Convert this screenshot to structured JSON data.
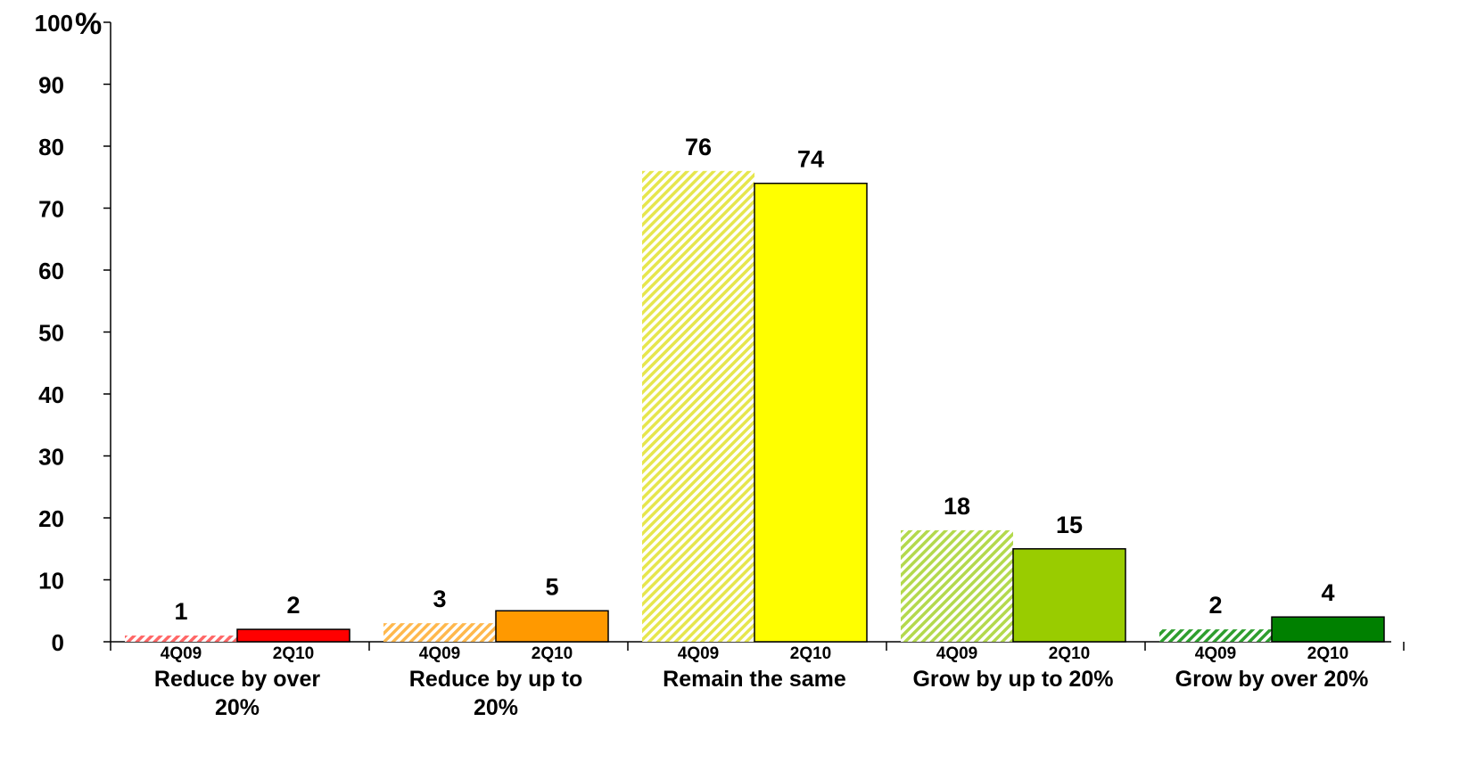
{
  "chart_data": {
    "type": "bar",
    "ylim": [
      0,
      100
    ],
    "yticks": [
      0,
      10,
      20,
      30,
      40,
      50,
      60,
      70,
      80,
      90,
      100
    ],
    "ylabel": "%",
    "grid": false,
    "legend": "none",
    "periods": [
      "4Q09",
      "2Q10"
    ],
    "categories": [
      "Reduce by over 20%",
      "Reduce by up to 20%",
      "Remain the same",
      "Grow by up to 20%",
      "Grow by over 20%"
    ],
    "series": [
      {
        "period": "4Q09",
        "values": [
          1,
          3,
          76,
          18,
          2
        ],
        "style": "hatched"
      },
      {
        "period": "2Q10",
        "values": [
          2,
          5,
          74,
          15,
          4
        ],
        "style": "solid"
      }
    ],
    "value_labels": {
      "4Q09": [
        "1",
        "3",
        "76",
        "18",
        "2"
      ],
      "2Q10": [
        "2",
        "5",
        "74",
        "15",
        "4"
      ]
    },
    "bar_colors": [
      "#ff0000",
      "#ff9900",
      "#ffff00",
      "#99cc00",
      "#008000"
    ],
    "hatch_colors": [
      "#ff6666",
      "#ffb84d",
      "#e6e64d",
      "#b3d94d",
      "#2e9e2e"
    ]
  }
}
